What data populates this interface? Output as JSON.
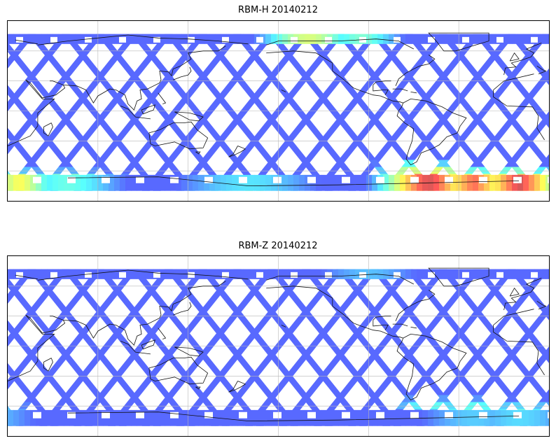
{
  "panels": [
    {
      "title": "RBM-H 20140212",
      "colormap": "jet",
      "alpha": 0.65,
      "hot_regions": [
        {
          "lon": 0,
          "lat": -72,
          "rlon": 28,
          "rlat": 14,
          "value": 0.95
        },
        {
          "lon": 28,
          "lat": -70,
          "rlon": 22,
          "rlat": 10,
          "value": 0.7
        },
        {
          "lon": 60,
          "lat": -68,
          "rlon": 30,
          "rlat": 8,
          "value": 0.55
        },
        {
          "lon": 300,
          "lat": -70,
          "rlon": 30,
          "rlat": 16,
          "value": 1.0
        },
        {
          "lon": 330,
          "lat": -72,
          "rlon": 30,
          "rlat": 14,
          "value": 0.85
        },
        {
          "lon": 285,
          "lat": -58,
          "rlon": 18,
          "rlat": 8,
          "value": 0.6
        },
        {
          "lon": 180,
          "lat": -78,
          "rlon": 40,
          "rlat": 8,
          "value": 0.55
        },
        {
          "lon": 220,
          "lat": 75,
          "rlon": 28,
          "rlat": 6,
          "value": 0.8
        },
        {
          "lon": 255,
          "lat": 75,
          "rlon": 22,
          "rlat": 6,
          "value": 0.6
        }
      ]
    },
    {
      "title": "RBM-Z 20140212",
      "colormap": "jet",
      "alpha": 0.65,
      "hot_regions": [
        {
          "lon": 0,
          "lat": -66,
          "rlon": 30,
          "rlat": 10,
          "value": 0.45
        },
        {
          "lon": 330,
          "lat": -64,
          "rlon": 30,
          "rlat": 10,
          "value": 0.5
        },
        {
          "lon": 300,
          "lat": -60,
          "rlon": 20,
          "rlat": 8,
          "value": 0.45
        },
        {
          "lon": 260,
          "lat": 75,
          "rlon": 25,
          "rlat": 5,
          "value": 0.38
        }
      ]
    }
  ],
  "map": {
    "projection": "equirectangular",
    "lon_range": [
      20,
      380
    ],
    "lat_range": [
      -90,
      90
    ],
    "gridlines": true,
    "grid_lon_step": 60,
    "grid_lat_step": 30,
    "coastlines": true
  }
}
